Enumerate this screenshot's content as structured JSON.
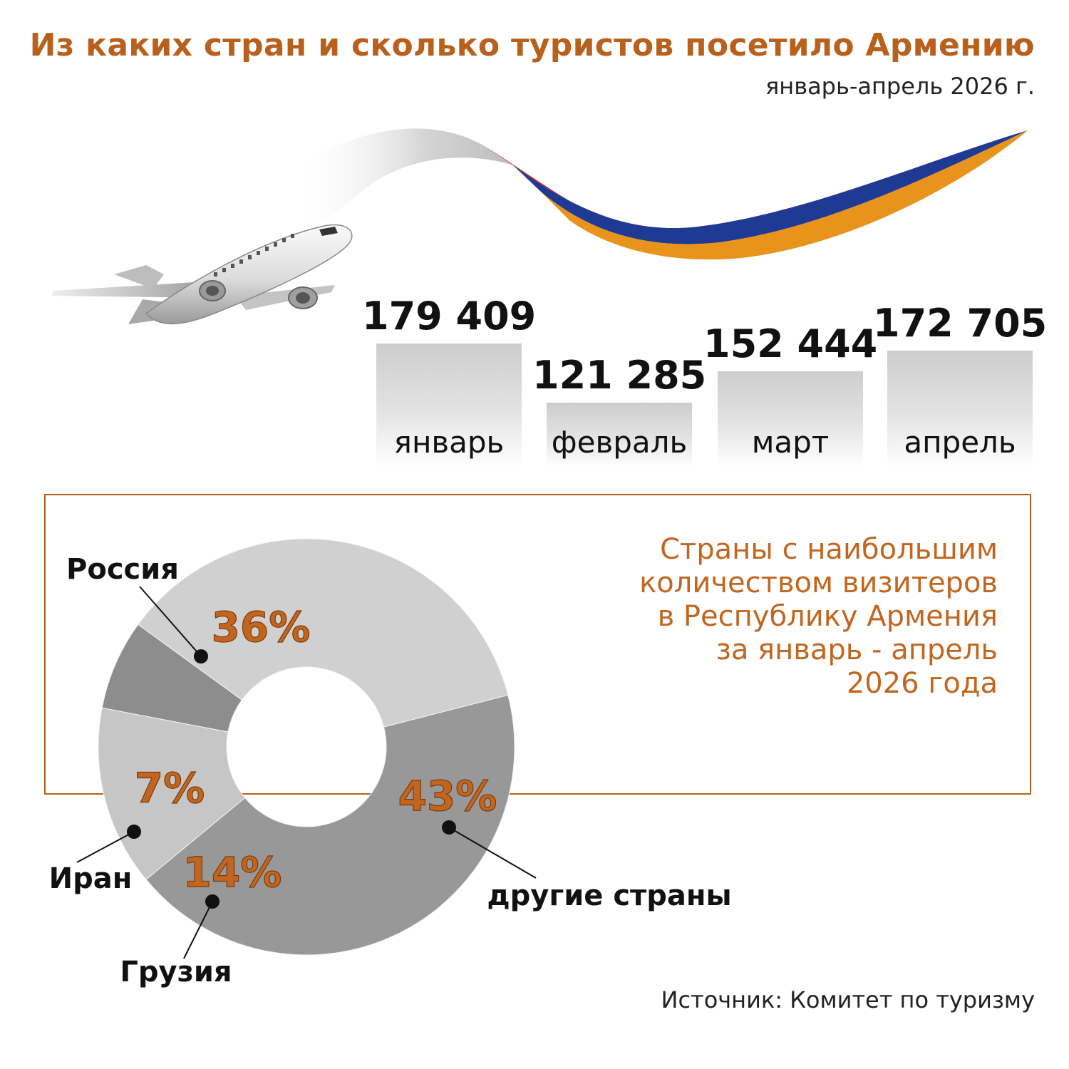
{
  "header": {
    "title": "Из каких стран и сколько туристов посетило Армению",
    "subtitle": "январь-апрель 2026 г."
  },
  "colors": {
    "accent": "#b8601c",
    "flag_red": "#c8232c",
    "flag_blue": "#1f3a93",
    "flag_orange": "#e8931c"
  },
  "illustration": {
    "icons": [
      "airplane-icon",
      "armenian-flag-ribbon"
    ]
  },
  "monthly": {
    "type": "bar",
    "categories": [
      "январь",
      "февраль",
      "март",
      "апрель"
    ],
    "value_labels": [
      "179 409",
      "121 285",
      "152 444",
      "172 705"
    ],
    "values": [
      179409,
      121285,
      152444,
      172705
    ]
  },
  "countries": {
    "heading": "Страны с наибольшим\nколичеством визитеров\nв Республику Армения\nза январь - апрель\n2026 года"
  },
  "chart_data": [
    {
      "type": "bar",
      "title": "",
      "xlabel": "",
      "ylabel": "",
      "categories": [
        "январь",
        "февраль",
        "март",
        "апрель"
      ],
      "values": [
        179409,
        121285,
        152444,
        172705
      ],
      "grid": false,
      "legend": "none"
    },
    {
      "type": "pie",
      "title": "Страны с наибольшим количеством визитеров в Республику Армения за январь - апрель 2026 года",
      "categories": [
        "Россия",
        "другие страны",
        "Грузия",
        "Иран"
      ],
      "values": [
        36,
        43,
        14,
        7
      ],
      "labels": [
        "36%",
        "43%",
        "14%",
        "7%"
      ],
      "colors": [
        "#d0d0d0",
        "#989898",
        "#c6c6c6",
        "#8d8d8d"
      ],
      "donut": true
    }
  ],
  "footer": {
    "source": "Источник: Комитет по туризму"
  }
}
